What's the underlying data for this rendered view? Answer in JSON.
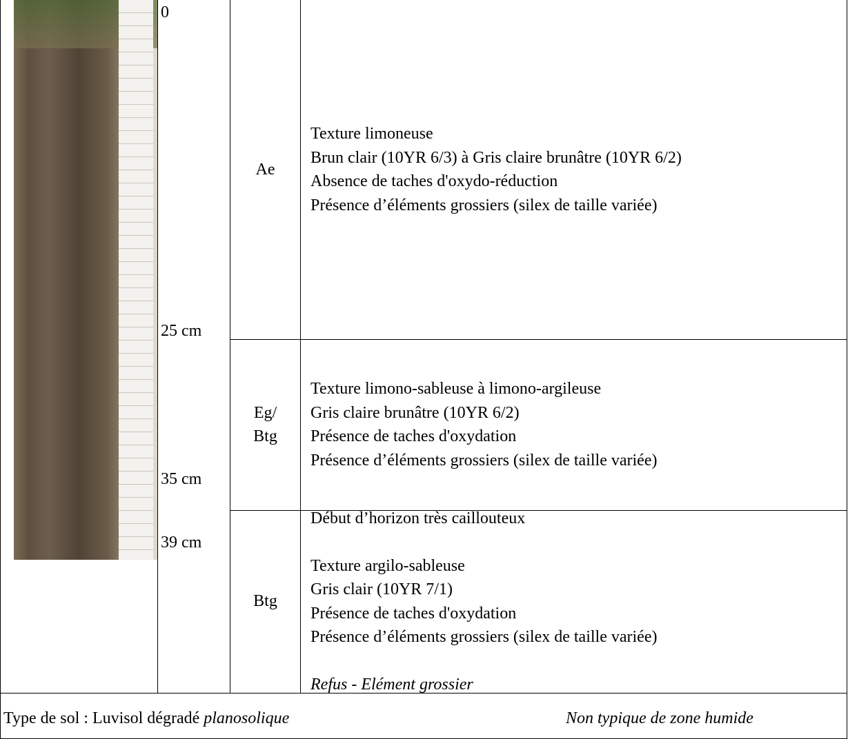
{
  "depths": [
    "0",
    "25 cm",
    "35 cm",
    "39 cm"
  ],
  "horizons": [
    {
      "name": "Ae",
      "paragraphs": [
        [
          "Texture limoneuse",
          "Brun clair (10YR 6/3) à Gris claire brunâtre (10YR 6/2)",
          "Absence de taches d'oxydo-réduction",
          "Présence d’éléments grossiers (silex de taille variée)"
        ]
      ]
    },
    {
      "name": "Eg/\nBtg",
      "paragraphs": [
        [
          "Texture limono-sableuse à limono-argileuse",
          "Gris claire brunâtre (10YR 6/2)",
          "Présence de taches d'oxydation",
          "Présence d’éléments grossiers (silex de taille variée)"
        ]
      ]
    },
    {
      "name": "Btg",
      "paragraphs": [
        [
          "Début d’horizon très caillouteux"
        ],
        [
          "Texture argilo-sableuse",
          "Gris clair (10YR 7/1)",
          "Présence de taches d'oxydation",
          "Présence d’éléments grossiers (silex de taille variée)"
        ]
      ],
      "note": "Refus - Elément grossier"
    }
  ],
  "footer": {
    "label": "Type de sol : Luvisol dégradé ",
    "label_italic": "planosolique",
    "right": "Non typique de zone humide"
  }
}
